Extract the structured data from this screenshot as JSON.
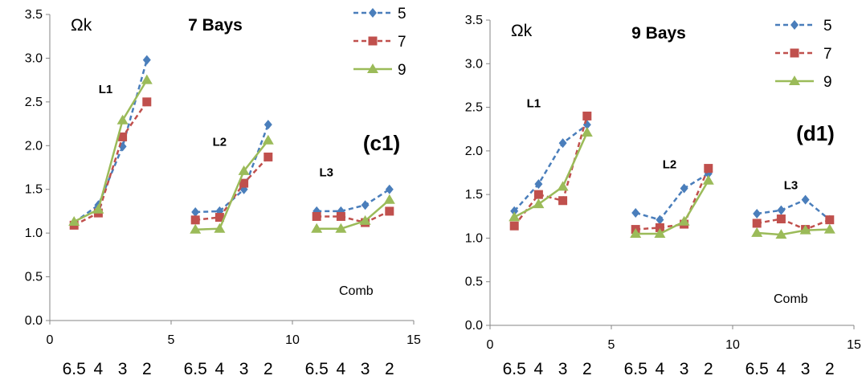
{
  "chart_data": [
    {
      "type": "line",
      "title": "7 Bays",
      "symbol": "Ωk",
      "panel_label": "(c1)",
      "xlim": [
        0,
        15
      ],
      "ylim": [
        0,
        3.5
      ],
      "x_ticks": [
        "0",
        "5",
        "10",
        "15"
      ],
      "y_ticks": [
        "0.0",
        "0.5",
        "1.0",
        "1.5",
        "2.0",
        "2.5",
        "3.0",
        "3.5"
      ],
      "category_labels": [
        "6.5",
        "4",
        "3",
        "2",
        "6.5",
        "4",
        "3",
        "2",
        "6.5",
        "4",
        "3",
        "2"
      ],
      "group_labels": [
        {
          "text": "L1",
          "x": 2.3,
          "y": 2.6
        },
        {
          "text": "L2",
          "x": 7.0,
          "y": 2.0
        },
        {
          "text": "L3",
          "x": 11.4,
          "y": 1.65
        }
      ],
      "annotation": "Comb",
      "legend_position": "top-right",
      "series": [
        {
          "name": "5",
          "color": "#4a7ebb",
          "marker": "diamond",
          "dash": "dashed",
          "segments": [
            {
              "x": [
                1,
                2,
                3,
                4
              ],
              "y": [
                1.12,
                1.32,
                1.99,
                2.98
              ]
            },
            {
              "x": [
                6,
                7,
                8,
                9
              ],
              "y": [
                1.24,
                1.25,
                1.5,
                2.24
              ]
            },
            {
              "x": [
                11,
                12,
                13,
                14
              ],
              "y": [
                1.25,
                1.25,
                1.32,
                1.5
              ]
            }
          ]
        },
        {
          "name": "7",
          "color": "#c0504d",
          "marker": "square",
          "dash": "dashed",
          "segments": [
            {
              "x": [
                1,
                2,
                3,
                4
              ],
              "y": [
                1.09,
                1.23,
                2.1,
                2.5
              ]
            },
            {
              "x": [
                6,
                7,
                8,
                9
              ],
              "y": [
                1.15,
                1.18,
                1.57,
                1.87
              ]
            },
            {
              "x": [
                11,
                12,
                13,
                14
              ],
              "y": [
                1.19,
                1.19,
                1.12,
                1.25
              ]
            }
          ]
        },
        {
          "name": "9",
          "color": "#9bbb59",
          "marker": "triangle",
          "dash": "solid",
          "segments": [
            {
              "x": [
                1,
                2,
                3,
                4
              ],
              "y": [
                1.13,
                1.27,
                2.29,
                2.75
              ]
            },
            {
              "x": [
                6,
                7,
                8,
                9
              ],
              "y": [
                1.04,
                1.05,
                1.71,
                2.06
              ]
            },
            {
              "x": [
                11,
                12,
                13,
                14
              ],
              "y": [
                1.05,
                1.05,
                1.14,
                1.38
              ]
            }
          ]
        }
      ]
    },
    {
      "type": "line",
      "title": "9 Bays",
      "symbol": "Ωk",
      "panel_label": "(d1)",
      "xlim": [
        0,
        15
      ],
      "ylim": [
        0,
        3.5
      ],
      "x_ticks": [
        "0",
        "5",
        "10",
        "15"
      ],
      "y_ticks": [
        "0.0",
        "0.5",
        "1.0",
        "1.5",
        "2.0",
        "2.5",
        "3.0",
        "3.5"
      ],
      "category_labels": [
        "6.5",
        "4",
        "3",
        "2",
        "6.5",
        "4",
        "3",
        "2",
        "6.5",
        "4",
        "3",
        "2"
      ],
      "group_labels": [
        {
          "text": "L1",
          "x": 1.8,
          "y": 2.5
        },
        {
          "text": "L2",
          "x": 7.4,
          "y": 1.8
        },
        {
          "text": "L3",
          "x": 12.4,
          "y": 1.56
        }
      ],
      "annotation": "Comb",
      "legend_position": "top-right",
      "series": [
        {
          "name": "5",
          "color": "#4a7ebb",
          "marker": "diamond",
          "dash": "dashed",
          "segments": [
            {
              "x": [
                1,
                2,
                3,
                4
              ],
              "y": [
                1.31,
                1.62,
                2.09,
                2.3
              ]
            },
            {
              "x": [
                6,
                7,
                8,
                9
              ],
              "y": [
                1.29,
                1.21,
                1.57,
                1.74
              ]
            },
            {
              "x": [
                11,
                12,
                13,
                14
              ],
              "y": [
                1.28,
                1.32,
                1.44,
                1.21
              ]
            }
          ]
        },
        {
          "name": "7",
          "color": "#c0504d",
          "marker": "square",
          "dash": "dashed",
          "segments": [
            {
              "x": [
                1,
                2,
                3,
                4
              ],
              "y": [
                1.14,
                1.5,
                1.43,
                2.4
              ]
            },
            {
              "x": [
                6,
                7,
                8,
                9
              ],
              "y": [
                1.1,
                1.12,
                1.16,
                1.8
              ]
            },
            {
              "x": [
                11,
                12,
                13,
                14
              ],
              "y": [
                1.17,
                1.22,
                1.1,
                1.21
              ]
            }
          ]
        },
        {
          "name": "9",
          "color": "#9bbb59",
          "marker": "triangle",
          "dash": "solid",
          "segments": [
            {
              "x": [
                1,
                2,
                3,
                4
              ],
              "y": [
                1.24,
                1.39,
                1.59,
                2.21
              ]
            },
            {
              "x": [
                6,
                7,
                8,
                9
              ],
              "y": [
                1.05,
                1.05,
                1.19,
                1.66
              ]
            },
            {
              "x": [
                11,
                12,
                13,
                14
              ],
              "y": [
                1.06,
                1.04,
                1.09,
                1.1
              ]
            }
          ]
        }
      ]
    }
  ]
}
